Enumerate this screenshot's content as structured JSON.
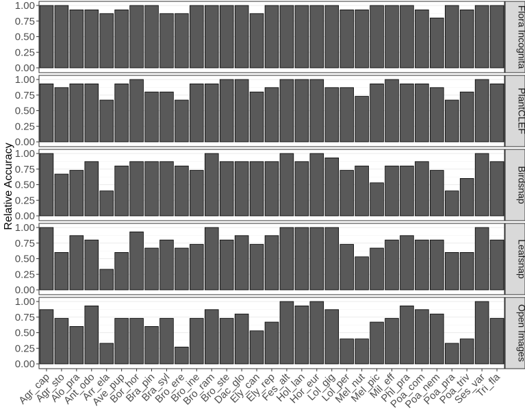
{
  "chart_data": {
    "type": "bar",
    "ylabel": "Relative Accuracy",
    "xlabel": "",
    "ylim": [
      0,
      1
    ],
    "yticks": [
      "0.00",
      "0.25",
      "0.50",
      "0.75",
      "1.00"
    ],
    "grid": true,
    "bar_color": "#595959",
    "bar_edge_color": "#000000",
    "strip_color": "#d9d9d9",
    "categories": [
      "Agr_cap",
      "Agr_sto",
      "Alo_pra",
      "Ant_odo",
      "Arr_ela",
      "Ave_pup",
      "Bor_hor",
      "Bra_pin",
      "Bra_syl",
      "Bro_ere",
      "Bro_ine",
      "Bro_ram",
      "Bro_ste",
      "Dac_glo",
      "Ely_can",
      "Ely_rep",
      "Fes_alt",
      "Hol_lan",
      "Hor_eur",
      "Lol_gig",
      "Lol_per",
      "Mel_nut",
      "Mel_pic",
      "Mil_eff",
      "Phl_pra",
      "Poa_com",
      "Poa_nem",
      "Poa_pra",
      "Poa_triv",
      "Ses_var",
      "Tri_fla"
    ],
    "panels": [
      {
        "name": "Flora Incognita",
        "values": [
          1.0,
          1.0,
          0.93,
          0.93,
          0.87,
          0.93,
          1.0,
          1.0,
          0.87,
          0.87,
          1.0,
          1.0,
          1.0,
          1.0,
          0.87,
          1.0,
          1.0,
          1.0,
          1.0,
          1.0,
          0.93,
          0.93,
          1.0,
          1.0,
          1.0,
          0.93,
          0.8,
          1.0,
          0.93,
          1.0,
          1.0
        ]
      },
      {
        "name": "PlantCLEF",
        "values": [
          0.93,
          0.87,
          0.93,
          0.93,
          0.67,
          0.93,
          1.0,
          0.8,
          0.8,
          0.67,
          0.93,
          0.93,
          1.0,
          1.0,
          0.8,
          0.87,
          1.0,
          1.0,
          1.0,
          0.87,
          0.87,
          0.73,
          0.93,
          1.0,
          0.93,
          0.93,
          0.87,
          0.67,
          0.8,
          1.0,
          0.93
        ]
      },
      {
        "name": "Birdsnap",
        "values": [
          1.0,
          0.67,
          0.73,
          0.87,
          0.4,
          0.8,
          0.87,
          0.87,
          0.87,
          0.8,
          0.73,
          1.0,
          0.87,
          0.87,
          0.87,
          0.87,
          1.0,
          0.87,
          1.0,
          0.93,
          0.73,
          0.8,
          0.53,
          0.8,
          0.8,
          0.87,
          0.73,
          0.4,
          0.6,
          1.0,
          0.87
        ]
      },
      {
        "name": "Leafsnap",
        "values": [
          1.0,
          0.6,
          0.87,
          0.8,
          0.33,
          0.6,
          0.93,
          0.67,
          0.8,
          0.67,
          0.73,
          1.0,
          0.8,
          0.87,
          0.73,
          0.87,
          1.0,
          1.0,
          1.0,
          1.0,
          0.73,
          0.53,
          0.67,
          0.8,
          0.87,
          0.8,
          0.8,
          0.6,
          0.6,
          1.0,
          0.8
        ]
      },
      {
        "name": "Open Images",
        "values": [
          0.87,
          0.73,
          0.6,
          0.93,
          0.33,
          0.73,
          0.73,
          0.6,
          0.73,
          0.27,
          0.73,
          0.87,
          0.73,
          0.8,
          0.53,
          0.67,
          1.0,
          0.93,
          1.0,
          0.87,
          0.4,
          0.4,
          0.67,
          0.73,
          0.93,
          0.87,
          0.8,
          0.33,
          0.4,
          1.0,
          0.73
        ]
      }
    ]
  }
}
